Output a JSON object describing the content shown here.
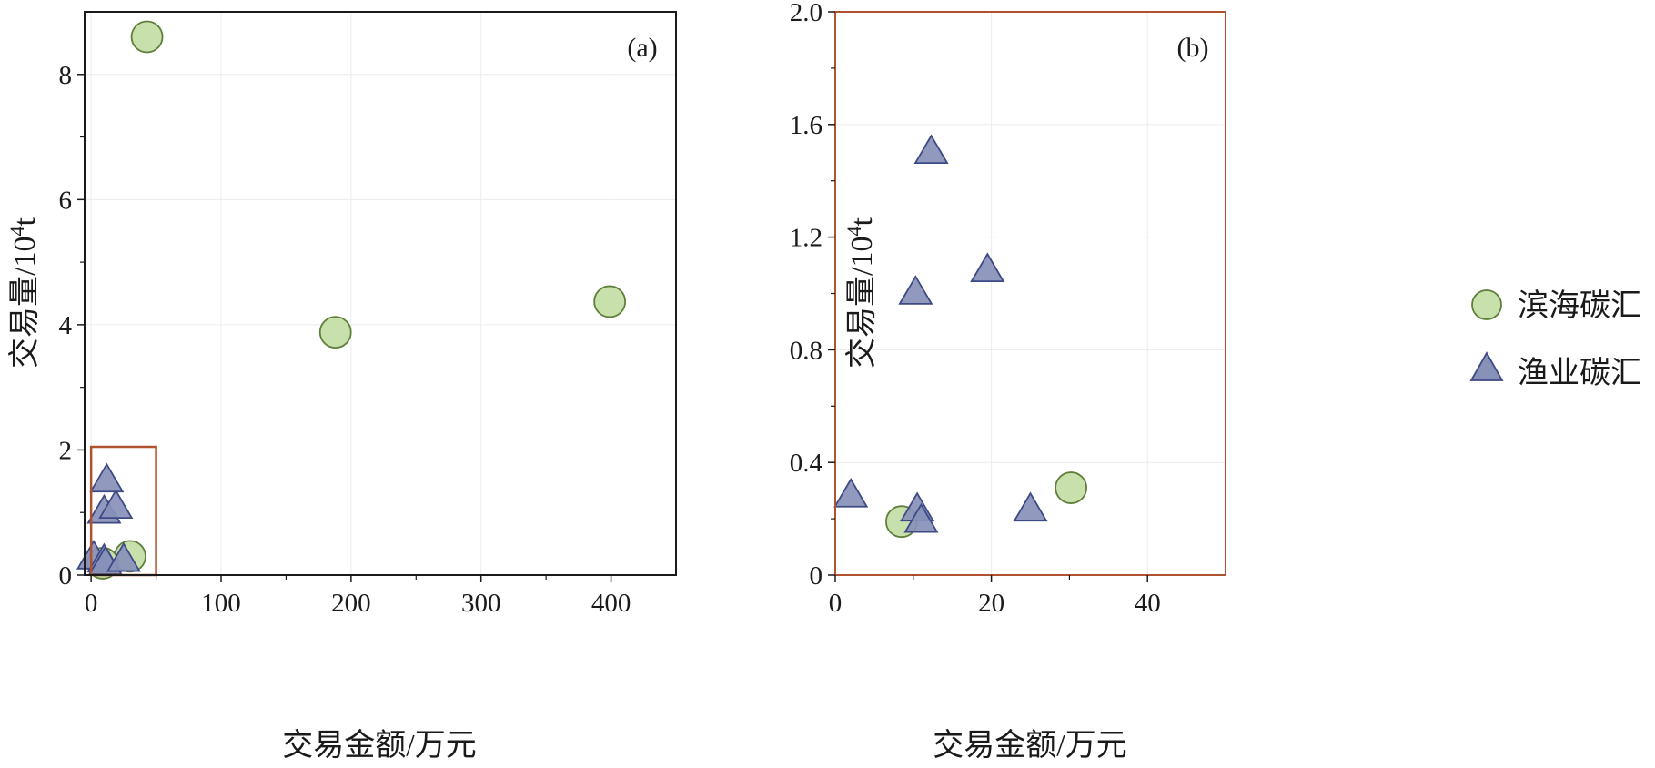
{
  "chart_data": [
    {
      "type": "scatter",
      "panel_label": "(a)",
      "xlabel": "交易金额/万元",
      "ylabel_main": "交易量/10",
      "ylabel_sup": "4",
      "ylabel_unit": "t",
      "xlim": [
        -5,
        450
      ],
      "ylim": [
        0,
        9
      ],
      "xticks": [
        0,
        100,
        200,
        300,
        400
      ],
      "yticks": [
        0,
        2,
        4,
        6,
        8
      ],
      "xtick_labels": [
        "0",
        "100",
        "200",
        "300",
        "400"
      ],
      "ytick_labels": [
        "0",
        "2",
        "4",
        "6",
        "8"
      ],
      "grid": true,
      "inset_box": {
        "x": [
          0,
          50
        ],
        "y": [
          0,
          2.05
        ],
        "color": "#b0522d"
      },
      "frame_color": "#1a1a1a",
      "series": [
        {
          "name": "滨海碳汇",
          "marker": "circle",
          "color": "#c8e0ac",
          "edge": "#5f7f3a",
          "points": [
            [
              43,
              8.6
            ],
            [
              188,
              3.88
            ],
            [
              399,
              4.37
            ],
            [
              30,
              0.3
            ],
            [
              9,
              0.19
            ]
          ]
        },
        {
          "name": "渔业碳汇",
          "marker": "triangle",
          "color": "#8891b8",
          "edge": "#3e4a86",
          "points": [
            [
              2,
              0.27
            ],
            [
              10,
              1.0
            ],
            [
              12,
              1.5
            ],
            [
              19,
              1.08
            ],
            [
              10,
              0.22
            ],
            [
              11,
              0.18
            ],
            [
              25,
              0.23
            ]
          ]
        }
      ]
    },
    {
      "type": "scatter",
      "panel_label": "(b)",
      "xlabel": "交易金额/万元",
      "ylabel_main": "交易量/10",
      "ylabel_sup": "4",
      "ylabel_unit": "t",
      "xlim": [
        0,
        50
      ],
      "ylim": [
        0,
        2.0
      ],
      "xticks": [
        0,
        20,
        40
      ],
      "yticks": [
        0,
        0.4,
        0.8,
        1.2,
        1.6,
        2.0
      ],
      "xtick_labels": [
        "0",
        "20",
        "40"
      ],
      "ytick_labels": [
        "0",
        "0.4",
        "0.8",
        "1.2",
        "1.6",
        "2.0"
      ],
      "grid": true,
      "frame_color": "#b0522d",
      "series": [
        {
          "name": "滨海碳汇",
          "marker": "circle",
          "color": "#c8e0ac",
          "edge": "#5f7f3a",
          "points": [
            [
              8.5,
              0.19
            ],
            [
              30.2,
              0.31
            ]
          ]
        },
        {
          "name": "渔业碳汇",
          "marker": "triangle",
          "color": "#8891b8",
          "edge": "#3e4a86",
          "points": [
            [
              2,
              0.28
            ],
            [
              10.3,
              1.0
            ],
            [
              12.3,
              1.5
            ],
            [
              19.5,
              1.08
            ],
            [
              10.5,
              0.23
            ],
            [
              11,
              0.19
            ],
            [
              25,
              0.23
            ]
          ]
        }
      ]
    }
  ],
  "legend": {
    "placement": "right",
    "items": [
      {
        "label": "滨海碳汇",
        "marker": "circle"
      },
      {
        "label": "渔业碳汇",
        "marker": "triangle"
      }
    ]
  }
}
